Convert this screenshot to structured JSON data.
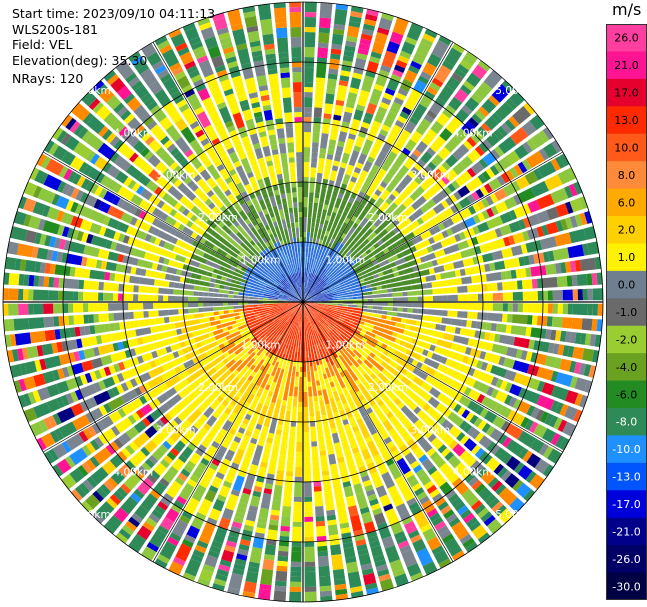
{
  "info": {
    "start_time": "Start time: 2023/09/10 04:11:13",
    "station": "WLS200s-181",
    "field": "Field: VEL",
    "elevation": "Elevation(deg): 35.30",
    "nrays": "NRays: 120"
  },
  "colorbar": {
    "unit": "m/s",
    "ticks": [
      "26.0",
      "21.0",
      "17.0",
      "13.0",
      "10.0",
      "8.0",
      "6.0",
      "2.0",
      "1.0",
      "0.0",
      "-1.0",
      "-2.0",
      "-4.0",
      "-6.0",
      "-8.0",
      "-10.0",
      "-13.0",
      "-17.0",
      "-21.0",
      "-26.0",
      "-30.0"
    ],
    "colors": [
      "#ff3fa0",
      "#ff1493",
      "#e6002e",
      "#ff2a00",
      "#ff5a1a",
      "#ff8a3a",
      "#ffaa00",
      "#ffd000",
      "#fff200",
      "#6f7f90",
      "#6a6a6a",
      "#9acd32",
      "#6aa121",
      "#228b22",
      "#2e8b57",
      "#1e90ff",
      "#0055ff",
      "#0000dd",
      "#00008b",
      "#000066",
      "#000044"
    ]
  },
  "chart_data": {
    "type": "ppi",
    "field": "VEL",
    "units": "m/s",
    "nrays": 120,
    "elevation_deg": 35.3,
    "range_ring_labels": [
      "1.00km",
      "2.00km",
      "3.00km",
      "4.00km",
      "5.00km"
    ],
    "range_rings_km": [
      1,
      2,
      3,
      4,
      5
    ]
  }
}
